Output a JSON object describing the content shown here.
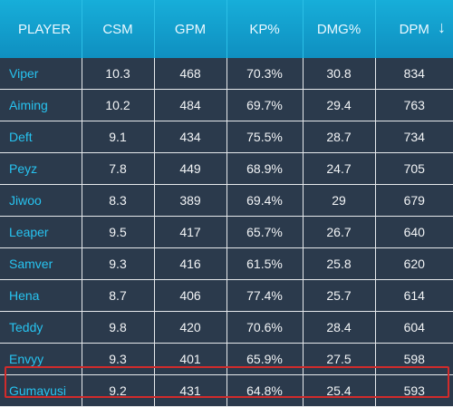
{
  "table": {
    "columns": [
      {
        "key": "player",
        "label": "PLAYER"
      },
      {
        "key": "csm",
        "label": "CSM"
      },
      {
        "key": "gpm",
        "label": "GPM"
      },
      {
        "key": "kp",
        "label": "KP%"
      },
      {
        "key": "dmg",
        "label": "DMG%"
      },
      {
        "key": "dpm",
        "label": "DPM"
      }
    ],
    "sort": {
      "column": "DPM",
      "direction": "descending",
      "icon": "arrow-down-icon",
      "glyph": "↓"
    },
    "rows": [
      {
        "player": "Viper",
        "csm": "10.3",
        "gpm": "468",
        "kp": "70.3%",
        "dmg": "30.8",
        "dpm": "834"
      },
      {
        "player": "Aiming",
        "csm": "10.2",
        "gpm": "484",
        "kp": "69.7%",
        "dmg": "29.4",
        "dpm": "763"
      },
      {
        "player": "Deft",
        "csm": "9.1",
        "gpm": "434",
        "kp": "75.5%",
        "dmg": "28.7",
        "dpm": "734"
      },
      {
        "player": "Peyz",
        "csm": "7.8",
        "gpm": "449",
        "kp": "68.9%",
        "dmg": "24.7",
        "dpm": "705"
      },
      {
        "player": "Jiwoo",
        "csm": "8.3",
        "gpm": "389",
        "kp": "69.4%",
        "dmg": "29",
        "dpm": "679"
      },
      {
        "player": "Leaper",
        "csm": "9.5",
        "gpm": "417",
        "kp": "65.7%",
        "dmg": "26.7",
        "dpm": "640"
      },
      {
        "player": "Samver",
        "csm": "9.3",
        "gpm": "416",
        "kp": "61.5%",
        "dmg": "25.8",
        "dpm": "620"
      },
      {
        "player": "Hena",
        "csm": "8.7",
        "gpm": "406",
        "kp": "77.4%",
        "dmg": "25.7",
        "dpm": "614"
      },
      {
        "player": "Teddy",
        "csm": "9.8",
        "gpm": "420",
        "kp": "70.6%",
        "dmg": "28.4",
        "dpm": "604"
      },
      {
        "player": "Envyy",
        "csm": "9.3",
        "gpm": "401",
        "kp": "65.9%",
        "dmg": "27.5",
        "dpm": "598"
      },
      {
        "player": "Gumayusi",
        "csm": "9.2",
        "gpm": "431",
        "kp": "64.8%",
        "dmg": "25.4",
        "dpm": "593"
      }
    ],
    "highlighted_row": 10
  },
  "colors": {
    "header": "#13a3d0",
    "row_background": "#2b3a4c",
    "player_text": "#27c3f0",
    "grid_lines": "#e6e9ec",
    "highlight": "#d12b2b"
  }
}
